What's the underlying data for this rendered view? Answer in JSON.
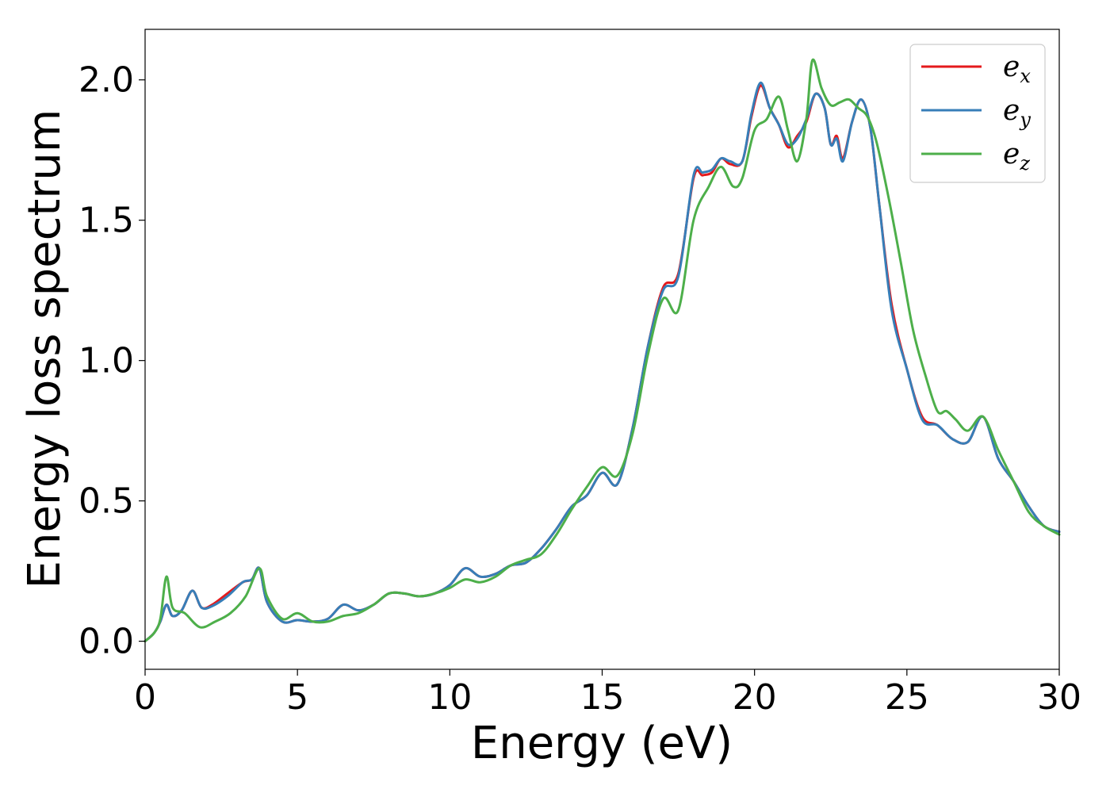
{
  "chart_data": {
    "type": "line",
    "title": "",
    "xlabel": "Energy (eV)",
    "ylabel": "Energy loss spectrum",
    "xlim": [
      0,
      30
    ],
    "ylim": [
      -0.1,
      2.18
    ],
    "xticks": [
      0,
      5,
      10,
      15,
      20,
      25,
      30
    ],
    "xtick_labels": [
      "0",
      "5",
      "10",
      "15",
      "20",
      "25",
      "30"
    ],
    "yticks": [
      0.0,
      0.5,
      1.0,
      1.5,
      2.0
    ],
    "ytick_labels": [
      "0.0",
      "0.5",
      "1.0",
      "1.5",
      "2.0"
    ],
    "grid": false,
    "legend_position": "top-right",
    "series": [
      {
        "name": "e_x",
        "legend_main": "e",
        "legend_sub": "x",
        "color": "#e41a1c",
        "x": [
          0,
          0.3,
          0.5,
          0.7,
          0.9,
          1.2,
          1.55,
          1.85,
          2.2,
          2.7,
          3.2,
          3.5,
          3.75,
          4.0,
          4.5,
          5.0,
          5.5,
          6.0,
          6.5,
          7.0,
          7.5,
          8.0,
          8.5,
          9.0,
          9.5,
          10.0,
          10.5,
          11.0,
          11.5,
          12.0,
          12.5,
          13.0,
          13.5,
          14.0,
          14.5,
          15.0,
          15.5,
          16.0,
          16.5,
          17.0,
          17.5,
          18.0,
          18.3,
          18.6,
          18.9,
          19.2,
          19.6,
          19.9,
          20.2,
          20.5,
          20.8,
          21.1,
          21.4,
          21.7,
          22.0,
          22.3,
          22.5,
          22.7,
          22.9,
          23.2,
          23.5,
          23.8,
          24.1,
          24.5,
          25.0,
          25.5,
          26.0,
          26.5,
          27.0,
          27.5,
          28.0,
          28.5,
          29.0,
          29.5,
          30.0
        ],
        "y": [
          0.0,
          0.03,
          0.07,
          0.13,
          0.09,
          0.11,
          0.18,
          0.12,
          0.13,
          0.17,
          0.21,
          0.22,
          0.26,
          0.14,
          0.07,
          0.075,
          0.07,
          0.08,
          0.13,
          0.11,
          0.13,
          0.17,
          0.17,
          0.16,
          0.17,
          0.2,
          0.26,
          0.23,
          0.24,
          0.27,
          0.28,
          0.33,
          0.4,
          0.48,
          0.52,
          0.6,
          0.56,
          0.76,
          1.05,
          1.26,
          1.31,
          1.65,
          1.66,
          1.67,
          1.72,
          1.7,
          1.71,
          1.87,
          1.98,
          1.9,
          1.84,
          1.76,
          1.8,
          1.85,
          1.95,
          1.9,
          1.77,
          1.8,
          1.72,
          1.85,
          1.93,
          1.83,
          1.55,
          1.2,
          0.97,
          0.8,
          0.77,
          0.72,
          0.71,
          0.8,
          0.65,
          0.57,
          0.48,
          0.41,
          0.39
        ]
      },
      {
        "name": "e_y",
        "legend_main": "e",
        "legend_sub": "y",
        "color": "#377eb8",
        "x": [
          0,
          0.3,
          0.5,
          0.7,
          0.9,
          1.2,
          1.55,
          1.85,
          2.2,
          2.7,
          3.2,
          3.5,
          3.75,
          4.0,
          4.5,
          5.0,
          5.5,
          6.0,
          6.5,
          7.0,
          7.5,
          8.0,
          8.5,
          9.0,
          9.5,
          10.0,
          10.5,
          11.0,
          11.5,
          12.0,
          12.5,
          13.0,
          13.5,
          14.0,
          14.5,
          15.0,
          15.5,
          16.0,
          16.5,
          17.0,
          17.5,
          18.0,
          18.3,
          18.6,
          18.9,
          19.2,
          19.6,
          19.9,
          20.2,
          20.5,
          20.8,
          21.1,
          21.4,
          21.7,
          22.0,
          22.3,
          22.5,
          22.7,
          22.9,
          23.2,
          23.5,
          23.8,
          24.1,
          24.5,
          25.0,
          25.5,
          26.0,
          26.5,
          27.0,
          27.5,
          28.0,
          28.5,
          29.0,
          29.5,
          30.0
        ],
        "y": [
          0.0,
          0.03,
          0.07,
          0.13,
          0.09,
          0.11,
          0.18,
          0.12,
          0.125,
          0.16,
          0.21,
          0.22,
          0.26,
          0.14,
          0.07,
          0.075,
          0.07,
          0.08,
          0.13,
          0.11,
          0.13,
          0.17,
          0.17,
          0.16,
          0.17,
          0.2,
          0.26,
          0.23,
          0.24,
          0.27,
          0.28,
          0.33,
          0.4,
          0.48,
          0.52,
          0.6,
          0.56,
          0.76,
          1.05,
          1.25,
          1.3,
          1.66,
          1.67,
          1.68,
          1.72,
          1.71,
          1.71,
          1.88,
          1.99,
          1.9,
          1.84,
          1.77,
          1.79,
          1.86,
          1.95,
          1.9,
          1.77,
          1.79,
          1.71,
          1.85,
          1.93,
          1.83,
          1.55,
          1.18,
          0.97,
          0.79,
          0.77,
          0.72,
          0.71,
          0.8,
          0.65,
          0.57,
          0.48,
          0.41,
          0.39
        ]
      },
      {
        "name": "e_z",
        "legend_main": "e",
        "legend_sub": "z",
        "color": "#4daf4a",
        "x": [
          0,
          0.3,
          0.5,
          0.7,
          0.9,
          1.3,
          1.8,
          2.3,
          2.8,
          3.3,
          3.75,
          4.0,
          4.5,
          5.0,
          5.5,
          6.0,
          6.5,
          7.0,
          7.5,
          8.0,
          8.5,
          9.0,
          9.5,
          10.0,
          10.5,
          11.0,
          11.5,
          12.0,
          12.5,
          13.0,
          13.5,
          14.0,
          14.5,
          15.0,
          15.5,
          16.0,
          16.5,
          17.0,
          17.5,
          18.0,
          18.5,
          18.9,
          19.3,
          19.6,
          20.0,
          20.4,
          20.8,
          21.1,
          21.4,
          21.7,
          21.9,
          22.2,
          22.5,
          22.8,
          23.1,
          23.4,
          23.7,
          24.0,
          24.4,
          24.8,
          25.2,
          25.6,
          26.0,
          26.3,
          26.6,
          27.0,
          27.5,
          28.0,
          28.5,
          29.0,
          29.5,
          30.0
        ],
        "y": [
          0.0,
          0.03,
          0.08,
          0.23,
          0.12,
          0.1,
          0.05,
          0.07,
          0.1,
          0.16,
          0.26,
          0.16,
          0.08,
          0.1,
          0.07,
          0.07,
          0.09,
          0.1,
          0.13,
          0.17,
          0.17,
          0.16,
          0.17,
          0.19,
          0.22,
          0.21,
          0.23,
          0.27,
          0.29,
          0.31,
          0.38,
          0.47,
          0.55,
          0.62,
          0.59,
          0.74,
          1.02,
          1.22,
          1.18,
          1.5,
          1.62,
          1.69,
          1.62,
          1.65,
          1.82,
          1.86,
          1.94,
          1.82,
          1.71,
          1.86,
          2.07,
          1.97,
          1.91,
          1.92,
          1.93,
          1.9,
          1.87,
          1.78,
          1.58,
          1.35,
          1.11,
          0.95,
          0.82,
          0.82,
          0.79,
          0.75,
          0.8,
          0.68,
          0.57,
          0.46,
          0.41,
          0.38
        ]
      }
    ]
  }
}
